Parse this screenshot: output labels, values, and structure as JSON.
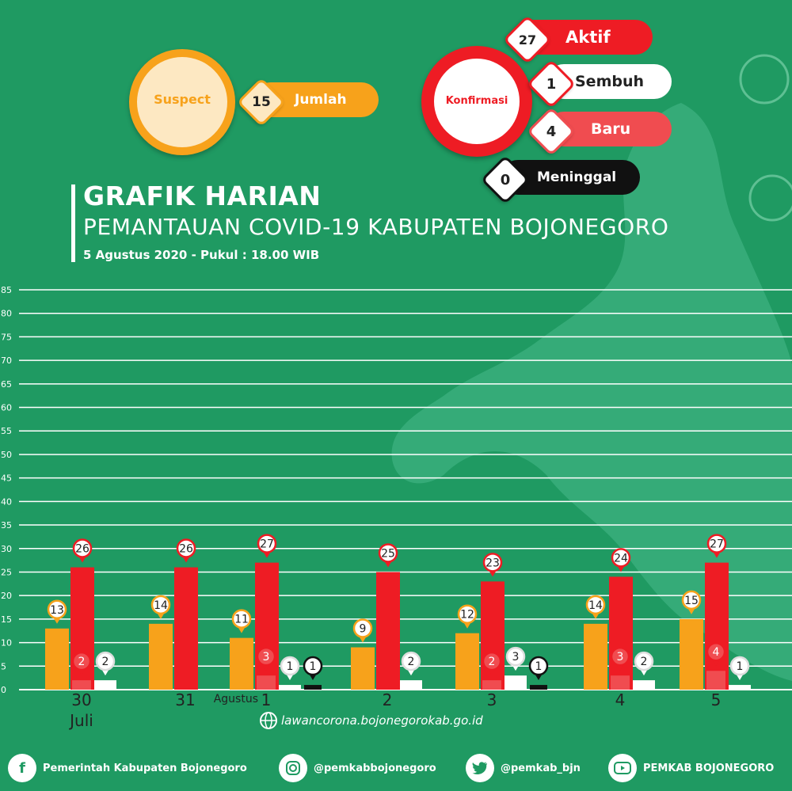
{
  "colors": {
    "background": "#1f9a62",
    "suspect": "#f7a21b",
    "aktif": "#ee1c24",
    "baru": "#f04c50",
    "sembuh": "#ffffff",
    "meninggal": "#111111"
  },
  "summary": {
    "suspect": {
      "label": "Suspect",
      "value": "15",
      "unit": "Jumlah"
    },
    "konfirmasi": {
      "label": "Konfirmasi",
      "aktif": {
        "value": "27",
        "label": "Aktif"
      },
      "sembuh": {
        "value": "1",
        "label": "Sembuh"
      },
      "baru": {
        "value": "4",
        "label": "Baru"
      },
      "meninggal": {
        "value": "0",
        "label": "Meninggal"
      }
    }
  },
  "header": {
    "title": "GRAFIK HARIAN",
    "subtitle": "PEMANTAUAN COVID-19 KABUPATEN BOJONEGORO",
    "date": "5 Agustus 2020 - Pukul : 18.00 WIB"
  },
  "chart_data": {
    "type": "bar",
    "categories": [
      "30 Juli",
      "31",
      "1",
      "2",
      "3",
      "4",
      "5"
    ],
    "category_labels": [
      {
        "main": "30",
        "sub": "Juli"
      },
      {
        "main": "31",
        "sub": ""
      },
      {
        "main": "1",
        "sub": "Agustus",
        "prefix": true
      },
      {
        "main": "2",
        "sub": ""
      },
      {
        "main": "3",
        "sub": ""
      },
      {
        "main": "4",
        "sub": ""
      },
      {
        "main": "5",
        "sub": ""
      }
    ],
    "series": [
      {
        "key": "suspect",
        "color": "#f7a21b",
        "values": [
          13,
          14,
          11,
          9,
          12,
          14,
          15
        ]
      },
      {
        "key": "aktif",
        "color": "#ee1c24",
        "values": [
          26,
          26,
          27,
          25,
          23,
          24,
          27
        ]
      },
      {
        "key": "baru",
        "color": "#f04c50",
        "values": [
          2,
          0,
          3,
          0,
          2,
          3,
          4
        ]
      },
      {
        "key": "sembuh",
        "color": "#ffffff",
        "values": [
          2,
          0,
          1,
          2,
          3,
          2,
          1
        ]
      },
      {
        "key": "meninggal",
        "color": "#111111",
        "values": [
          0,
          0,
          1,
          0,
          1,
          0,
          0
        ]
      }
    ],
    "yticks": [
      0,
      5,
      10,
      15,
      20,
      25,
      30,
      35,
      40,
      45,
      50,
      55,
      60,
      65,
      70,
      75,
      80,
      85
    ],
    "ylim": [
      0,
      85
    ],
    "grid": true,
    "value_labels": true
  },
  "footer": {
    "website": "lawancorona.bojonegorokab.go.id",
    "facebook": "Pemerintah Kabupaten Bojonegoro",
    "instagram": "@pemkabbojonegoro",
    "twitter": "@pemkab_bjn",
    "youtube": "PEMKAB BOJONEGORO",
    "icons": {
      "facebook": "facebook-icon",
      "instagram": "instagram-icon",
      "twitter": "twitter-icon",
      "youtube": "youtube-icon",
      "web": "globe-icon"
    }
  }
}
